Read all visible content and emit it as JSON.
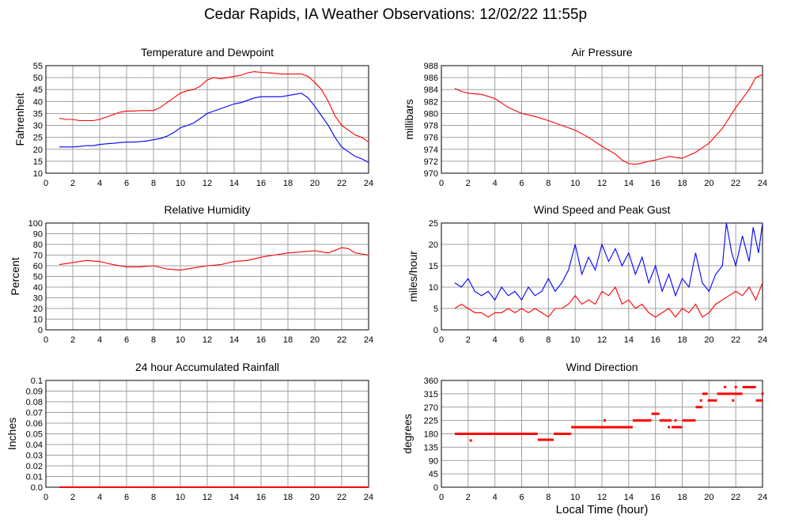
{
  "page": {
    "title": "Cedar Rapids, IA Weather Observations: 12/02/22 11:55p",
    "xaxis_title": "Local Time (hour)"
  },
  "colors": {
    "red": "#ff0000",
    "blue": "#0000ff",
    "grid": "#a0a0a0"
  },
  "chart_data": [
    {
      "id": "temp",
      "type": "line",
      "title": "Temperature and Dewpoint",
      "ylabel": "Fahrenheit",
      "xlim": [
        0,
        24
      ],
      "ylim": [
        10,
        55
      ],
      "xticks": [
        0,
        2,
        4,
        6,
        8,
        10,
        12,
        14,
        16,
        18,
        20,
        22,
        24
      ],
      "yticks": [
        10,
        15,
        20,
        25,
        30,
        35,
        40,
        45,
        50,
        55
      ],
      "grid": true,
      "series": [
        {
          "color": "#ff0000",
          "x": [
            1.0,
            1.5,
            2.0,
            2.5,
            3.0,
            3.5,
            4.0,
            4.5,
            5.0,
            5.5,
            6.0,
            6.5,
            7.0,
            7.5,
            8.0,
            8.5,
            9.0,
            9.5,
            10.0,
            10.5,
            11.0,
            11.5,
            12.0,
            12.5,
            13.0,
            13.5,
            14.0,
            14.5,
            15.0,
            15.5,
            16.0,
            16.5,
            17.0,
            17.5,
            18.0,
            18.5,
            19.0,
            19.5,
            20.0,
            20.5,
            21.0,
            21.5,
            22.0,
            22.5,
            23.0,
            23.5,
            24.0
          ],
          "y": [
            33,
            32.5,
            32.5,
            32,
            32,
            32,
            32.5,
            33.5,
            34.5,
            35.5,
            36,
            36,
            36.2,
            36.2,
            36.2,
            37.5,
            39.5,
            41.5,
            43.5,
            44.5,
            45,
            46.5,
            49,
            50,
            49.5,
            50,
            50.5,
            51,
            52,
            52.5,
            52.2,
            52,
            51.8,
            51.5,
            51.5,
            51.5,
            51.5,
            50.5,
            48,
            45,
            40,
            34,
            30,
            28,
            26,
            25,
            23
          ]
        },
        {
          "color": "#0000ff",
          "x": [
            1.0,
            1.5,
            2.0,
            2.5,
            3.0,
            3.5,
            4.0,
            4.5,
            5.0,
            5.5,
            6.0,
            6.5,
            7.0,
            7.5,
            8.0,
            8.5,
            9.0,
            9.5,
            10.0,
            10.5,
            11.0,
            11.5,
            12.0,
            12.5,
            13.0,
            13.5,
            14.0,
            14.5,
            15.0,
            15.5,
            16.0,
            16.5,
            17.0,
            17.5,
            18.0,
            18.5,
            19.0,
            19.5,
            20.0,
            20.5,
            21.0,
            21.5,
            22.0,
            22.5,
            23.0,
            23.5,
            24.0
          ],
          "y": [
            21,
            21,
            21,
            21.2,
            21.5,
            21.5,
            22,
            22.3,
            22.5,
            22.8,
            23,
            23,
            23.2,
            23.5,
            24,
            24.5,
            25.5,
            27,
            29,
            30,
            31,
            33,
            35,
            36,
            37,
            38,
            39,
            39.5,
            40.5,
            41.5,
            42,
            42,
            42,
            42,
            42.5,
            43,
            43.5,
            41.5,
            38,
            34,
            30,
            25,
            21,
            19,
            17,
            16,
            14.5
          ]
        }
      ]
    },
    {
      "id": "pressure",
      "type": "line",
      "title": "Air Pressure",
      "ylabel": "millibars",
      "xlim": [
        0,
        24
      ],
      "ylim": [
        970,
        988
      ],
      "xticks": [
        0,
        2,
        4,
        6,
        8,
        10,
        12,
        14,
        16,
        18,
        20,
        22,
        24
      ],
      "yticks": [
        970,
        972,
        974,
        976,
        978,
        980,
        982,
        984,
        986,
        988
      ],
      "grid": true,
      "series": [
        {
          "color": "#ff0000",
          "x": [
            1.0,
            1.5,
            2.0,
            3.0,
            4.0,
            5.0,
            6.0,
            7.0,
            8.0,
            9.0,
            10.0,
            11.0,
            12.0,
            13.0,
            13.5,
            14.0,
            14.5,
            15.0,
            15.5,
            16.0,
            17.0,
            18.0,
            19.0,
            20.0,
            21.0,
            22.0,
            22.5,
            23.0,
            23.5,
            24.0
          ],
          "y": [
            984.2,
            983.7,
            983.4,
            983.2,
            982.5,
            981,
            980,
            979.5,
            978.8,
            978,
            977.2,
            976,
            974.5,
            973.2,
            972.2,
            971.6,
            971.5,
            971.7,
            972,
            972.2,
            972.8,
            972.5,
            973.5,
            975,
            977.5,
            981,
            982.5,
            984,
            986,
            986.5
          ]
        }
      ]
    },
    {
      "id": "humidity",
      "type": "line",
      "title": "Relative Humidity",
      "ylabel": "Percent",
      "xlim": [
        0,
        24
      ],
      "ylim": [
        0,
        100
      ],
      "xticks": [
        0,
        2,
        4,
        6,
        8,
        10,
        12,
        14,
        16,
        18,
        20,
        22,
        24
      ],
      "yticks": [
        0,
        10,
        20,
        30,
        40,
        50,
        60,
        70,
        80,
        90,
        100
      ],
      "grid": true,
      "series": [
        {
          "color": "#ff0000",
          "x": [
            1.0,
            2.0,
            3.0,
            4.0,
            5.0,
            6.0,
            7.0,
            8.0,
            9.0,
            10.0,
            11.0,
            12.0,
            13.0,
            14.0,
            15.0,
            16.0,
            17.0,
            18.0,
            19.0,
            20.0,
            21.0,
            22.0,
            22.5,
            23.0,
            24.0
          ],
          "y": [
            61,
            63,
            65,
            64,
            61,
            59,
            59,
            60,
            57,
            56,
            58,
            60,
            61,
            64,
            65,
            68,
            70,
            72,
            73,
            74,
            72,
            77,
            76,
            72,
            70
          ]
        }
      ]
    },
    {
      "id": "wind",
      "type": "line",
      "title": "Wind Speed and Peak Gust",
      "ylabel": "miles/hour",
      "xlim": [
        0,
        24
      ],
      "ylim": [
        0,
        25
      ],
      "xticks": [
        0,
        2,
        4,
        6,
        8,
        10,
        12,
        14,
        16,
        18,
        20,
        22,
        24
      ],
      "yticks": [
        0,
        5,
        10,
        15,
        20,
        25
      ],
      "grid": true,
      "series": [
        {
          "color": "#0000ff",
          "x": [
            1.0,
            1.5,
            2.0,
            2.5,
            3.0,
            3.5,
            4.0,
            4.5,
            5.0,
            5.5,
            6.0,
            6.5,
            7.0,
            7.5,
            8.0,
            8.5,
            9.0,
            9.5,
            10.0,
            10.5,
            11.0,
            11.5,
            12.0,
            12.5,
            13.0,
            13.5,
            14.0,
            14.5,
            15.0,
            15.5,
            16.0,
            16.5,
            17.0,
            17.5,
            18.0,
            18.5,
            19.0,
            19.5,
            20.0,
            20.5,
            21.0,
            21.3,
            21.7,
            22.0,
            22.5,
            23.0,
            23.3,
            23.7,
            24.0
          ],
          "y": [
            11,
            10,
            12,
            9,
            8,
            9,
            7,
            10,
            8,
            9,
            7,
            10,
            8,
            9,
            12,
            9,
            11,
            14,
            20,
            13,
            17,
            14,
            20,
            16,
            19,
            15,
            18,
            13,
            17,
            11,
            15,
            9,
            13,
            8,
            12,
            10,
            18,
            11,
            9,
            13,
            15,
            25,
            18,
            15,
            22,
            16,
            24,
            18,
            25
          ]
        },
        {
          "color": "#ff0000",
          "x": [
            1.0,
            1.5,
            2.0,
            2.5,
            3.0,
            3.5,
            4.0,
            4.5,
            5.0,
            5.5,
            6.0,
            6.5,
            7.0,
            7.5,
            8.0,
            8.5,
            9.0,
            9.5,
            10.0,
            10.5,
            11.0,
            11.5,
            12.0,
            12.5,
            13.0,
            13.5,
            14.0,
            14.5,
            15.0,
            15.5,
            16.0,
            16.5,
            17.0,
            17.5,
            18.0,
            18.5,
            19.0,
            19.5,
            20.0,
            20.5,
            21.0,
            21.5,
            22.0,
            22.5,
            23.0,
            23.5,
            24.0
          ],
          "y": [
            5,
            6,
            5,
            4,
            4,
            3,
            4,
            4,
            5,
            4,
            5,
            4,
            5,
            4,
            3,
            5,
            5,
            6,
            8,
            6,
            7,
            6,
            9,
            8,
            10,
            6,
            7,
            5,
            6,
            4,
            3,
            4,
            5,
            3,
            5,
            4,
            6,
            3,
            4,
            6,
            7,
            8,
            9,
            8,
            10,
            7,
            11
          ]
        }
      ]
    },
    {
      "id": "rain",
      "type": "line",
      "title": "24 hour Accumulated Rainfall",
      "ylabel": "Inches",
      "xlim": [
        0,
        24
      ],
      "ylim": [
        0,
        0.1
      ],
      "xticks": [
        0,
        2,
        4,
        6,
        8,
        10,
        12,
        14,
        16,
        18,
        20,
        22,
        24
      ],
      "yticks": [
        0.0,
        0.01,
        0.02,
        0.03,
        0.04,
        0.05,
        0.06,
        0.07,
        0.08,
        0.09,
        0.1
      ],
      "ytick_labels": [
        "0.0",
        "0.01",
        "0.02",
        "0.03",
        "0.04",
        "0.05",
        "0.06",
        "0.07",
        "0.08",
        "0.09",
        "0.1"
      ],
      "grid": true,
      "series": [
        {
          "color": "#ff0000",
          "x": [
            1.0,
            24.0
          ],
          "y": [
            0,
            0
          ]
        }
      ]
    },
    {
      "id": "direction",
      "type": "scatter",
      "title": "Wind Direction",
      "ylabel": "degrees",
      "xlim": [
        0,
        24
      ],
      "ylim": [
        0,
        360
      ],
      "xticks": [
        0,
        2,
        4,
        6,
        8,
        10,
        12,
        14,
        16,
        18,
        20,
        22,
        24
      ],
      "yticks": [
        0,
        45,
        90,
        135,
        180,
        225,
        270,
        315,
        360
      ],
      "grid": true,
      "segments": [
        {
          "x0": 1.0,
          "x1": 7.2,
          "y": 180
        },
        {
          "x0": 7.2,
          "x1": 8.4,
          "y": 160
        },
        {
          "x0": 8.4,
          "x1": 9.7,
          "y": 180
        },
        {
          "x0": 9.7,
          "x1": 14.3,
          "y": 202.5
        },
        {
          "x0": 14.3,
          "x1": 15.7,
          "y": 225
        },
        {
          "x0": 15.7,
          "x1": 16.3,
          "y": 247.5
        },
        {
          "x0": 16.3,
          "x1": 17.2,
          "y": 225
        },
        {
          "x0": 17.2,
          "x1": 18.0,
          "y": 202.5
        },
        {
          "x0": 18.0,
          "x1": 19.0,
          "y": 225
        },
        {
          "x0": 19.0,
          "x1": 19.5,
          "y": 270
        },
        {
          "x0": 19.5,
          "x1": 19.9,
          "y": 315
        },
        {
          "x0": 19.9,
          "x1": 20.6,
          "y": 292.5
        },
        {
          "x0": 20.6,
          "x1": 22.5,
          "y": 315
        },
        {
          "x0": 22.5,
          "x1": 23.5,
          "y": 337.5
        },
        {
          "x0": 23.5,
          "x1": 24.0,
          "y": 292.5
        }
      ],
      "points": [
        {
          "x": 2.2,
          "y": 157.5
        },
        {
          "x": 12.2,
          "y": 225
        },
        {
          "x": 17.0,
          "y": 202.5
        },
        {
          "x": 17.5,
          "y": 225
        },
        {
          "x": 19.4,
          "y": 292.5
        },
        {
          "x": 21.2,
          "y": 337.5
        },
        {
          "x": 21.8,
          "y": 292.5
        },
        {
          "x": 22.0,
          "y": 337.5
        },
        {
          "x": 24.0,
          "y": 315
        }
      ]
    }
  ]
}
